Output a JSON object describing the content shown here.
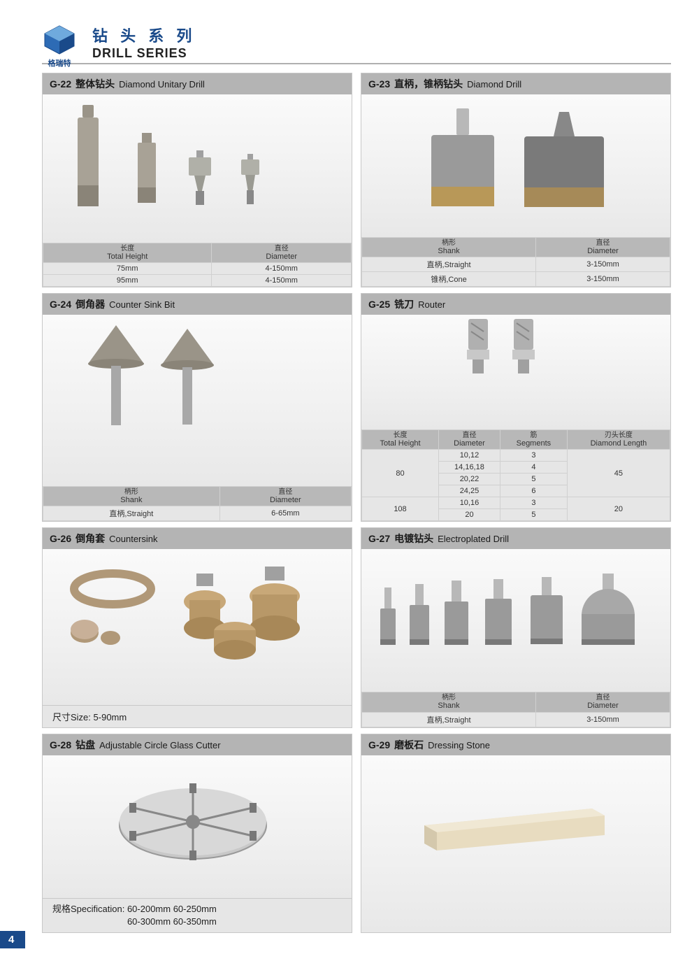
{
  "header": {
    "brand_cn": "格瑞特",
    "title_cn": "钻 头 系 列",
    "title_en": "DRILL SERIES"
  },
  "page_number": "4",
  "colors": {
    "brand_blue": "#1a4a8a",
    "header_gray": "#b4b4b4",
    "table_th_gray": "#b8b8b8",
    "table_td_gray": "#e6e6e6",
    "border_gray": "#c8c8c8",
    "page_bg": "#ffffff"
  },
  "cards": {
    "g22": {
      "code": "G-22",
      "cn": "整体钻头",
      "en": "Diamond Unitary Drill",
      "columns": [
        {
          "cn": "长度",
          "en": "Total Height"
        },
        {
          "cn": "直径",
          "en": "Diameter"
        }
      ],
      "rows": [
        [
          "75mm",
          "4-150mm"
        ],
        [
          "95mm",
          "4-150mm"
        ]
      ]
    },
    "g23": {
      "code": "G-23",
      "cn": "直柄，锥柄钻头",
      "en": "Diamond  Drill",
      "columns": [
        {
          "cn": "柄形",
          "en": "Shank"
        },
        {
          "cn": "直径",
          "en": "Diameter"
        }
      ],
      "rows": [
        [
          "直柄,Straight",
          "3-150mm"
        ],
        [
          "锥柄,Cone",
          "3-150mm"
        ]
      ]
    },
    "g24": {
      "code": "G-24",
      "cn": "倒角器",
      "en": "Counter Sink Bit",
      "columns": [
        {
          "cn": "柄形",
          "en": "Shank"
        },
        {
          "cn": "直径",
          "en": "Diameter"
        }
      ],
      "rows": [
        [
          "直柄,Straight",
          "6-65mm"
        ]
      ]
    },
    "g25": {
      "code": "G-25",
      "cn": "铣刀",
      "en": "Router",
      "columns": [
        {
          "cn": "长度",
          "en": "Total Height"
        },
        {
          "cn": "直径",
          "en": "Diameter"
        },
        {
          "cn": "筋",
          "en": "Segments"
        },
        {
          "cn": "刃头长度",
          "en": "Diamond Length"
        }
      ],
      "rows": [
        [
          {
            "v": "80",
            "rs": 4
          },
          "10,12",
          "3",
          {
            "v": "45",
            "rs": 4
          }
        ],
        [
          null,
          "14,16,18",
          "4",
          null
        ],
        [
          null,
          "20,22",
          "5",
          null
        ],
        [
          null,
          "24,25",
          "6",
          null
        ],
        [
          {
            "v": "108",
            "rs": 2
          },
          "10,16",
          "3",
          {
            "v": "20",
            "rs": 2
          }
        ],
        [
          null,
          "20",
          "5",
          null
        ]
      ]
    },
    "g26": {
      "code": "G-26",
      "cn": "倒角套",
      "en": "Countersink",
      "info_label": "尺寸Size:",
      "info_value": "5-90mm"
    },
    "g27": {
      "code": "G-27",
      "cn": "电镀钻头",
      "en": "Electroplated Drill",
      "columns": [
        {
          "cn": "柄形",
          "en": "Shank"
        },
        {
          "cn": "直径",
          "en": "Diameter"
        }
      ],
      "rows": [
        [
          "直柄,Straight",
          "3-150mm"
        ]
      ]
    },
    "g28": {
      "code": "G-28",
      "cn": "钻盘",
      "en": "Adjustable Circle Glass Cutter",
      "spec_label": "规格Specification:",
      "spec_line1": "60-200mm 60-250mm",
      "spec_line2": "60-300mm 60-350mm"
    },
    "g29": {
      "code": "G-29",
      "cn": "磨板石",
      "en": "Dressing Stone"
    }
  }
}
